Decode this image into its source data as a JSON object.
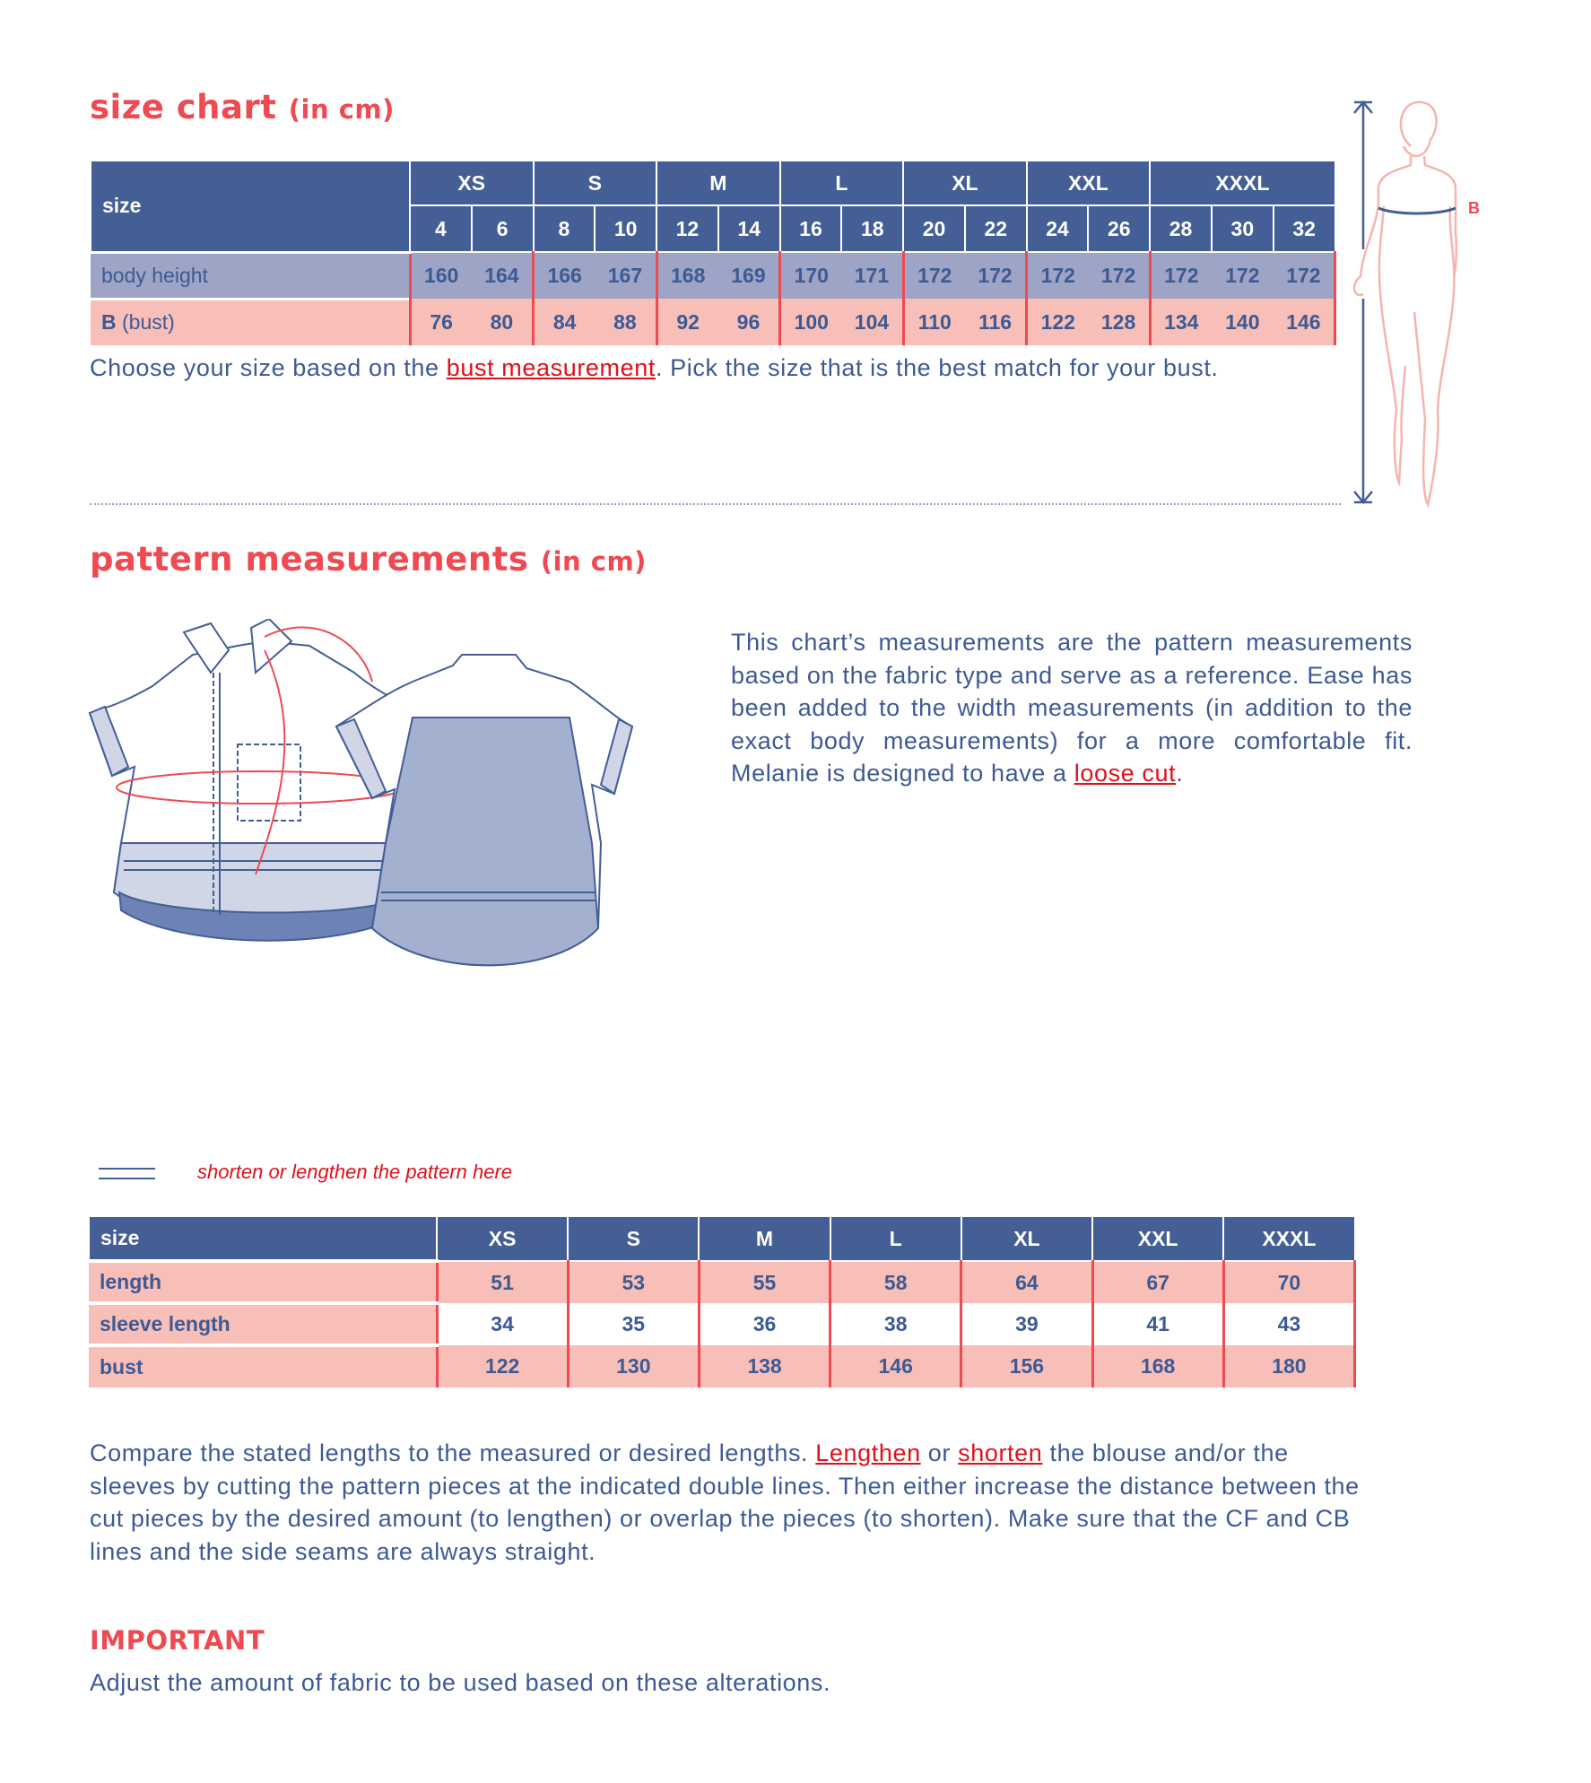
{
  "size_chart": {
    "title": "size chart",
    "unit": "(in cm)",
    "size_label": "size",
    "groups": [
      "XS",
      "S",
      "M",
      "L",
      "XL",
      "XXL",
      "XXXL"
    ],
    "group_sizes": [
      [
        "4",
        "6"
      ],
      [
        "8",
        "10"
      ],
      [
        "12",
        "14"
      ],
      [
        "16",
        "18"
      ],
      [
        "20",
        "22"
      ],
      [
        "24",
        "26"
      ],
      [
        "28",
        "30",
        "32"
      ]
    ],
    "rows": [
      {
        "label": "body height",
        "values": [
          "160",
          "164",
          "166",
          "167",
          "168",
          "169",
          "170",
          "171",
          "172",
          "172",
          "172",
          "172",
          "172",
          "172",
          "172"
        ]
      },
      {
        "label_bold": "B",
        "label": "(bust)",
        "values": [
          "76",
          "80",
          "84",
          "88",
          "92",
          "96",
          "100",
          "104",
          "110",
          "116",
          "122",
          "128",
          "134",
          "140",
          "146"
        ]
      }
    ],
    "note_before": "Choose your size based on the ",
    "note_link": "bust measurement",
    "note_after": ". Pick the size that is the best match for your bust.",
    "figure_label": "B"
  },
  "pattern": {
    "title": "pattern measurements",
    "unit": "(in cm)",
    "description_before": "This chart’s measurements are the pattern measurements based on the fabric type and serve as a reference. Ease has been added to the width measurements (in addition to the exact body measurements) for a more comfortable fit. Melanie is designed to have a ",
    "description_link": "loose cut",
    "description_after": ".",
    "legend_text": "shorten or lengthen the pattern here",
    "table": {
      "size_label": "size",
      "sizes": [
        "XS",
        "S",
        "M",
        "L",
        "XL",
        "XXL",
        "XXXL"
      ],
      "rows": [
        {
          "label": "length",
          "values": [
            "51",
            "53",
            "55",
            "58",
            "64",
            "67",
            "70"
          ]
        },
        {
          "label": "sleeve length",
          "values": [
            "34",
            "35",
            "36",
            "38",
            "39",
            "41",
            "43"
          ]
        },
        {
          "label": "bust",
          "values": [
            "122",
            "130",
            "138",
            "146",
            "156",
            "168",
            "180"
          ]
        }
      ]
    },
    "alter_p1": "Compare the stated lengths to the measured or desired lengths. ",
    "alter_link1": "Lengthen",
    "alter_p2": " or ",
    "alter_link2": "shorten",
    "alter_p3": " the blouse and/or the sleeves by cutting the pattern pieces at the indicated double lines. Then either increase the distance between the cut pieces by the desired amount (to lengthen) or overlap the pieces (to shorten). Make sure that the CF and CB lines and the side seams are always straight.",
    "important_title": "IMPORTANT",
    "important_text": "Adjust the amount of fabric to be used based on these alterations."
  },
  "colors": {
    "navy": "#435f96",
    "lavender": "#9da4c5",
    "pink": "#f8bfb8",
    "red": "#ef4a52",
    "link": "#e0101a"
  }
}
